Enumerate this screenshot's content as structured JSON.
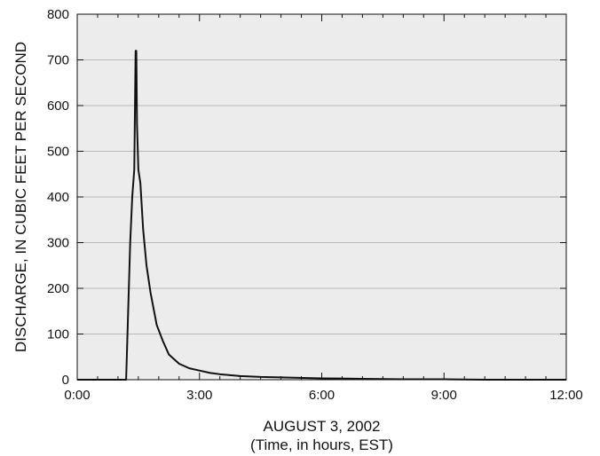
{
  "chart_data": {
    "type": "line",
    "title": "",
    "xlabel_line1": "AUGUST 3, 2002",
    "xlabel_line2": "(Time, in hours, EST)",
    "ylabel": "DISCHARGE, IN CUBIC FEET PER SECOND",
    "xlim": [
      "0:00",
      "12:00"
    ],
    "ylim": [
      0,
      800
    ],
    "x_tick_labels": [
      "0:00",
      "3:00",
      "6:00",
      "9:00",
      "12:00"
    ],
    "y_tick_labels": [
      "0",
      "100",
      "200",
      "300",
      "400",
      "500",
      "600",
      "700",
      "800"
    ],
    "grid": "horizontal",
    "background_color": "#ececec",
    "grid_color": "#b8b8b8",
    "line_color": "#111111",
    "series": [
      {
        "x": [
          "0:00",
          "1:00",
          "1:12",
          "1:15",
          "1:18",
          "1:21",
          "1:24",
          "1:26",
          "1:27",
          "1:28",
          "1:30",
          "1:33",
          "1:37",
          "1:42",
          "1:48",
          "1:57",
          "2:06",
          "2:15",
          "2:30",
          "2:45",
          "3:00",
          "3:15",
          "3:30",
          "3:45",
          "4:00",
          "4:30",
          "5:00",
          "6:00",
          "7:00",
          "8:00",
          "9:00",
          "10:00",
          "11:00",
          "12:00"
        ],
        "y": [
          0,
          0,
          0,
          150,
          300,
          400,
          460,
          720,
          720,
          560,
          460,
          430,
          330,
          250,
          190,
          120,
          85,
          55,
          35,
          25,
          20,
          15,
          12,
          10,
          8,
          6,
          5,
          3,
          2,
          1,
          1,
          0,
          0,
          0
        ]
      }
    ]
  }
}
